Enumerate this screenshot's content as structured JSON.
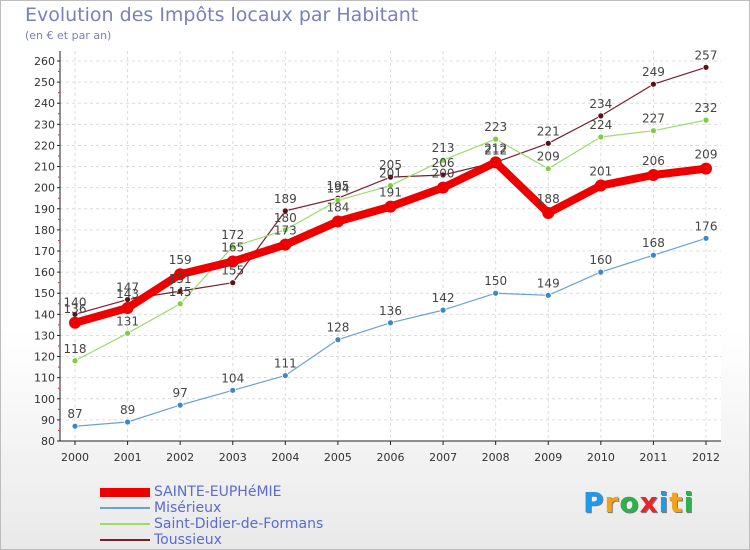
{
  "title": "Evolution des Impôts locaux par Habitant",
  "subtitle": "(en € et par an)",
  "logo": {
    "text": "Proxiti",
    "letters": [
      {
        "ch": "P",
        "color": "#1e9be8"
      },
      {
        "ch": "r",
        "color": "#f4a21b"
      },
      {
        "ch": "o",
        "color": "#2bb34a"
      },
      {
        "ch": "x",
        "color": "#e8262a"
      },
      {
        "ch": "i",
        "color": "#1e9be8"
      },
      {
        "ch": "t",
        "color": "#f4a21b"
      },
      {
        "ch": "i",
        "color": "#2bb34a"
      }
    ]
  },
  "chart_data": {
    "type": "line",
    "x": [
      "2000",
      "2001",
      "2002",
      "2003",
      "2004",
      "2005",
      "2006",
      "2007",
      "2008",
      "2009",
      "2010",
      "2011",
      "2012"
    ],
    "ylim": [
      80,
      260
    ],
    "yticks": [
      80,
      90,
      100,
      110,
      120,
      130,
      140,
      150,
      160,
      170,
      180,
      190,
      200,
      210,
      220,
      230,
      240,
      250,
      260
    ],
    "grid": true,
    "legend_position": "bottom-left",
    "series": [
      {
        "name": "Toussieux",
        "color": "#7a1f2a",
        "point_color": "#5a1018",
        "width": 1.2,
        "radius": 3,
        "values": [
          140,
          147,
          151,
          155,
          189,
          195,
          205,
          206,
          212,
          221,
          234,
          249,
          257
        ]
      },
      {
        "name": "Saint-Didier-de-Formans",
        "color": "#9bdc6c",
        "point_color": "#7ccf3f",
        "width": 1.2,
        "radius": 3,
        "values": [
          118,
          131,
          145,
          172,
          180,
          194,
          201,
          213,
          223,
          209,
          224,
          227,
          232
        ]
      },
      {
        "name": "Misérieux",
        "color": "#6aa2d4",
        "point_color": "#3f86c8",
        "width": 1.2,
        "radius": 3,
        "values": [
          87,
          89,
          97,
          104,
          111,
          128,
          136,
          142,
          150,
          149,
          160,
          168,
          176
        ]
      },
      {
        "name": "SAINTE-EUPHéMIE",
        "color": "#ee0000",
        "point_color": "#ee0000",
        "width": 8,
        "radius": 6,
        "values": [
          136,
          143,
          159,
          165,
          173,
          184,
          191,
          200,
          212,
          188,
          201,
          206,
          209
        ]
      }
    ]
  }
}
